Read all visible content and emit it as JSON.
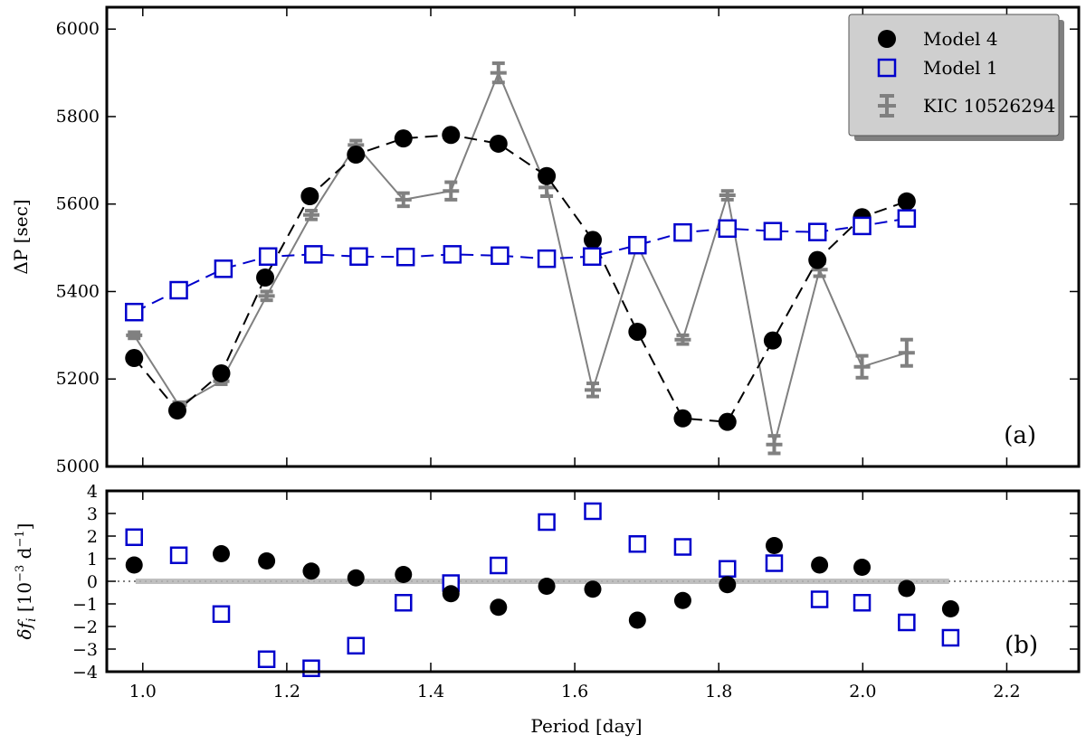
{
  "chart_data": [
    {
      "panel": "a",
      "type": "line",
      "panel_label": "(a)",
      "xlabel": "",
      "ylabel": "ΔP [sec]",
      "xlim": [
        0.95,
        2.3
      ],
      "ylim": [
        5000,
        6050
      ],
      "yticks": [
        5000,
        5200,
        5400,
        5600,
        5800,
        6000
      ],
      "legend": {
        "position": "top-right",
        "entries": [
          "Model 4",
          "Model 1",
          "KIC 10526294"
        ]
      },
      "series": [
        {
          "name": "Model 4",
          "marker": "filled-circle",
          "line": "dashed",
          "color": "#000000",
          "x": [
            0.988,
            1.048,
            1.109,
            1.17,
            1.232,
            1.296,
            1.362,
            1.428,
            1.494,
            1.561,
            1.625,
            1.687,
            1.75,
            1.812,
            1.875,
            1.937,
            1.999,
            2.061
          ],
          "y": [
            5248,
            5128,
            5213,
            5432,
            5618,
            5713,
            5750,
            5758,
            5738,
            5664,
            5518,
            5308,
            5110,
            5102,
            5288,
            5472,
            5570,
            5606
          ]
        },
        {
          "name": "Model 1",
          "marker": "open-square",
          "line": "dashed",
          "color": "#0000cc",
          "x": [
            0.988,
            1.05,
            1.112,
            1.174,
            1.237,
            1.3,
            1.365,
            1.43,
            1.496,
            1.561,
            1.624,
            1.687,
            1.75,
            1.812,
            1.875,
            1.937,
            1.999,
            2.061
          ],
          "y": [
            5353,
            5403,
            5452,
            5480,
            5485,
            5480,
            5479,
            5485,
            5482,
            5475,
            5480,
            5506,
            5535,
            5544,
            5538,
            5536,
            5550,
            5567
          ]
        },
        {
          "name": "KIC 10526294",
          "marker": "errorbar",
          "line": "solid",
          "color": "#808080",
          "x": [
            0.988,
            1.05,
            1.109,
            1.172,
            1.234,
            1.296,
            1.362,
            1.428,
            1.494,
            1.561,
            1.625,
            1.687,
            1.75,
            1.812,
            1.877,
            1.94,
            1.999,
            2.061
          ],
          "y": [
            5300,
            5140,
            5195,
            5390,
            5575,
            5735,
            5610,
            5630,
            5900,
            5638,
            5175,
            5506,
            5290,
            5620,
            5050,
            5450,
            5228,
            5260
          ],
          "err": [
            7,
            7,
            7,
            10,
            10,
            10,
            15,
            20,
            22,
            20,
            15,
            10,
            10,
            10,
            20,
            15,
            25,
            30
          ]
        }
      ]
    },
    {
      "panel": "b",
      "type": "scatter",
      "panel_label": "(b)",
      "xlabel": "Period [day]",
      "ylabel": "δf_i [10^-3 d^-1]",
      "ylabel_parts": {
        "a": "δ",
        "b": "f",
        "c": "i",
        "d": " [10",
        "e": "−3",
        "f": " d",
        "g": "−1",
        "h": "]"
      },
      "xlim": [
        0.95,
        2.3
      ],
      "ylim": [
        -4,
        4
      ],
      "xticks": [
        1.0,
        1.2,
        1.4,
        1.6,
        1.8,
        2.0,
        2.2
      ],
      "xtick_labels": [
        "1.0",
        "1.2",
        "1.4",
        "1.6",
        "1.8",
        "2.0",
        "2.2"
      ],
      "yticks": [
        -4,
        -3,
        -2,
        -1,
        0,
        1,
        2,
        3,
        4
      ],
      "zero_line": "dotted",
      "error_band": {
        "x_range": [
          0.99,
          2.12
        ],
        "half_width": 0.12,
        "color": "#b4b4b4"
      },
      "series": [
        {
          "name": "Model 4",
          "marker": "filled-circle",
          "color": "#000000",
          "x": [
            0.988,
            1.05,
            1.109,
            1.172,
            1.234,
            1.296,
            1.362,
            1.428,
            1.494,
            1.561,
            1.625,
            1.687,
            1.75,
            1.812,
            1.877,
            1.94,
            1.999,
            2.061,
            2.122
          ],
          "y": [
            0.72,
            null,
            1.22,
            0.9,
            0.45,
            0.15,
            0.3,
            -0.55,
            -1.15,
            -0.22,
            -0.35,
            -1.72,
            -0.85,
            -0.15,
            1.58,
            0.72,
            0.62,
            -0.32,
            -1.22
          ]
        },
        {
          "name": "Model 1",
          "marker": "open-square",
          "color": "#0000cc",
          "x": [
            0.988,
            1.05,
            1.109,
            1.172,
            1.234,
            1.296,
            1.362,
            1.428,
            1.494,
            1.561,
            1.625,
            1.687,
            1.75,
            1.812,
            1.877,
            1.94,
            1.999,
            2.061,
            2.122
          ],
          "y": [
            1.95,
            1.15,
            -1.45,
            -3.45,
            -3.85,
            -2.85,
            -0.95,
            -0.08,
            0.7,
            2.62,
            3.1,
            1.65,
            1.52,
            0.55,
            0.8,
            -0.8,
            -0.95,
            -1.82,
            -2.5
          ]
        }
      ]
    }
  ]
}
